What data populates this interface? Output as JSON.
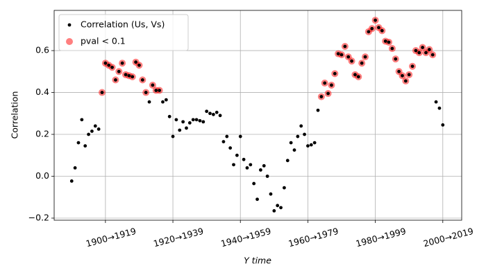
{
  "chart_data": {
    "type": "scatter",
    "x_label": "Y time",
    "y_label": "Correlation",
    "xlim": [
      1884.8,
      2005.6
    ],
    "ylim": [
      -0.21,
      0.792
    ],
    "xticks": [
      {
        "value": 1900,
        "label": "1900→1919"
      },
      {
        "value": 1920,
        "label": "1920→1939"
      },
      {
        "value": 1940,
        "label": "1940→1959"
      },
      {
        "value": 1960,
        "label": "1960→1979"
      },
      {
        "value": 1980,
        "label": "1980→1999"
      },
      {
        "value": 2000,
        "label": "2000→2019"
      }
    ],
    "yticks": [
      {
        "value": -0.2,
        "label": "−0.2"
      },
      {
        "value": 0,
        "label": "0.0"
      },
      0.2,
      0.4,
      0.6
    ],
    "grid": true,
    "legend": "upper left",
    "series": [
      {
        "name": "pval < 0.1",
        "color": "#ff0000",
        "x": [
          1899,
          1900,
          1901,
          1902,
          1903,
          1904,
          1905,
          1906,
          1907,
          1908,
          1909,
          1910,
          1911,
          1912,
          1914,
          1915,
          1916,
          1964,
          1965,
          1966,
          1967,
          1968,
          1969,
          1970,
          1971,
          1972,
          1973,
          1974,
          1975,
          1976,
          1977,
          1978,
          1979,
          1980,
          1981,
          1982,
          1983,
          1984,
          1985,
          1986,
          1987,
          1988,
          1989,
          1990,
          1991,
          1992,
          1993,
          1994,
          1995,
          1996,
          1997
        ],
        "values": [
          0.4,
          0.54,
          0.53,
          0.52,
          0.46,
          0.5,
          0.54,
          0.485,
          0.48,
          0.475,
          0.545,
          0.53,
          0.46,
          0.4,
          0.435,
          0.41,
          0.41,
          0.38,
          0.445,
          0.395,
          0.435,
          0.49,
          0.585,
          0.58,
          0.62,
          0.57,
          0.55,
          0.485,
          0.475,
          0.54,
          0.57,
          0.69,
          0.705,
          0.745,
          0.71,
          0.695,
          0.645,
          0.64,
          0.61,
          0.56,
          0.5,
          0.48,
          0.455,
          0.485,
          0.525,
          0.6,
          0.59,
          0.615,
          0.59,
          0.605,
          0.58
        ]
      },
      {
        "name": "Correlation (Us, Vs)",
        "color": "#000000",
        "x": [
          1890,
          1891,
          1892,
          1893,
          1894,
          1895,
          1896,
          1897,
          1898,
          1899,
          1900,
          1901,
          1902,
          1903,
          1904,
          1905,
          1906,
          1907,
          1908,
          1909,
          1910,
          1911,
          1912,
          1913,
          1914,
          1915,
          1916,
          1917,
          1918,
          1919,
          1920,
          1921,
          1922,
          1923,
          1924,
          1925,
          1926,
          1927,
          1928,
          1929,
          1930,
          1931,
          1932,
          1933,
          1934,
          1935,
          1936,
          1937,
          1938,
          1939,
          1940,
          1941,
          1942,
          1943,
          1944,
          1945,
          1946,
          1947,
          1948,
          1949,
          1950,
          1951,
          1952,
          1953,
          1954,
          1955,
          1956,
          1957,
          1958,
          1959,
          1960,
          1961,
          1962,
          1963,
          1964,
          1965,
          1966,
          1967,
          1968,
          1969,
          1970,
          1971,
          1972,
          1973,
          1974,
          1975,
          1976,
          1977,
          1978,
          1979,
          1980,
          1981,
          1982,
          1983,
          1984,
          1985,
          1986,
          1987,
          1988,
          1989,
          1990,
          1991,
          1992,
          1993,
          1994,
          1995,
          1996,
          1997,
          1998,
          1999,
          2000
        ],
        "values": [
          -0.023,
          0.04,
          0.16,
          0.27,
          0.145,
          0.2,
          0.215,
          0.24,
          0.225,
          0.4,
          0.54,
          0.53,
          0.52,
          0.46,
          0.5,
          0.54,
          0.485,
          0.48,
          0.475,
          0.545,
          0.53,
          0.46,
          0.4,
          0.355,
          0.435,
          0.41,
          0.41,
          0.355,
          0.365,
          0.285,
          0.19,
          0.27,
          0.22,
          0.26,
          0.23,
          0.255,
          0.27,
          0.27,
          0.265,
          0.26,
          0.31,
          0.3,
          0.295,
          0.305,
          0.29,
          0.165,
          0.19,
          0.135,
          0.055,
          0.1,
          0.19,
          0.08,
          0.04,
          0.055,
          -0.035,
          -0.11,
          0.03,
          0.05,
          0.0,
          -0.085,
          -0.165,
          -0.14,
          -0.15,
          -0.055,
          0.075,
          0.16,
          0.125,
          0.19,
          0.24,
          0.2,
          0.145,
          0.15,
          0.16,
          0.315,
          0.38,
          0.445,
          0.395,
          0.435,
          0.49,
          0.585,
          0.58,
          0.62,
          0.57,
          0.55,
          0.485,
          0.475,
          0.54,
          0.57,
          0.69,
          0.705,
          0.745,
          0.71,
          0.695,
          0.645,
          0.64,
          0.61,
          0.56,
          0.5,
          0.48,
          0.455,
          0.485,
          0.525,
          0.6,
          0.59,
          0.615,
          0.59,
          0.605,
          0.58,
          0.355,
          0.325,
          0.245
        ]
      }
    ]
  }
}
